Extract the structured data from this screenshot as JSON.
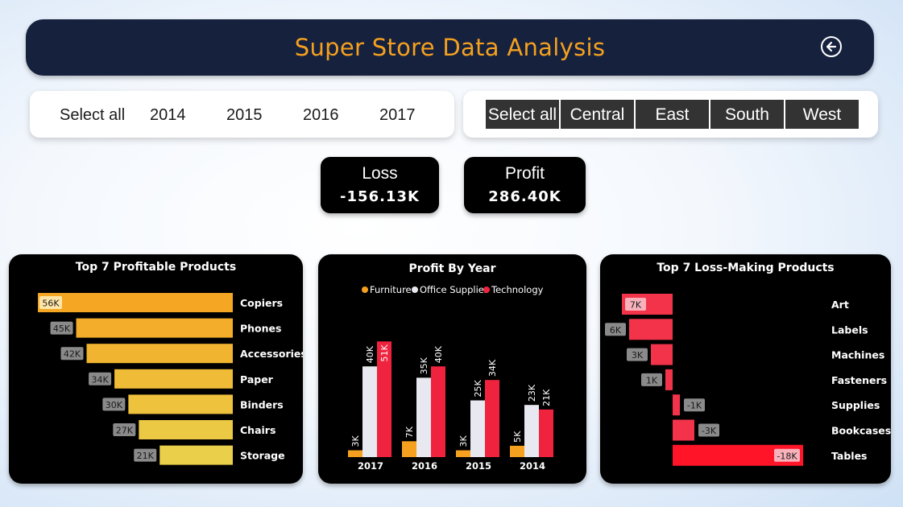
{
  "header": {
    "title": "Super Store Data Analysis"
  },
  "year_slicer": {
    "options": [
      "Select all",
      "2014",
      "2015",
      "2016",
      "2017"
    ]
  },
  "region_slicer": {
    "options": [
      "Select all",
      "Central",
      "East",
      "South",
      "West"
    ]
  },
  "kpis": {
    "loss": {
      "label": "Loss",
      "value": "-156.13K"
    },
    "profit": {
      "label": "Profit",
      "value": "286.40K"
    }
  },
  "colors": {
    "orange": "#f5a11f",
    "header_bg": "#16213e",
    "gold_start": "#f5a623",
    "gold_end": "#ead04a",
    "loss_red": "#f2334a"
  },
  "chart_data": [
    {
      "type": "bar",
      "orientation": "horizontal",
      "title": "Top 7 Profitable Products",
      "categories": [
        "Copiers",
        "Phones",
        "Accessories",
        "Paper",
        "Binders",
        "Chairs",
        "Storage"
      ],
      "values": [
        56,
        45,
        42,
        34,
        30,
        27,
        21
      ],
      "labels": [
        "56K",
        "45K",
        "42K",
        "34K",
        "30K",
        "27K",
        "21K"
      ]
    },
    {
      "type": "bar",
      "title": "Profit By Year",
      "legend_position": "top",
      "categories": [
        "2017",
        "2016",
        "2015",
        "2014"
      ],
      "series": [
        {
          "name": "Furniture",
          "color": "#f5a11f",
          "values": [
            3,
            7,
            3,
            5
          ],
          "labels": [
            "3K",
            "7K",
            "3K",
            "5K"
          ]
        },
        {
          "name": "Office Supplies",
          "color": "#e8e8f0",
          "values": [
            40,
            35,
            25,
            23
          ],
          "labels": [
            "40K",
            "35K",
            "25K",
            "23K"
          ]
        },
        {
          "name": "Technology",
          "color": "#f0233f",
          "values": [
            51,
            40,
            34,
            21
          ],
          "labels": [
            "51K",
            "40K",
            "34K",
            "21K"
          ]
        }
      ],
      "ylim": [
        0,
        55
      ]
    },
    {
      "type": "bar",
      "orientation": "horizontal",
      "title": "Top 7 Loss-Making Products",
      "categories": [
        "Art",
        "Labels",
        "Machines",
        "Fasteners",
        "Supplies",
        "Bookcases",
        "Tables"
      ],
      "values": [
        7,
        6,
        3,
        1,
        -1,
        -3,
        -18
      ],
      "labels": [
        "7K",
        "6K",
        "3K",
        "1K",
        "-1K",
        "-3K",
        "-18K"
      ]
    }
  ]
}
